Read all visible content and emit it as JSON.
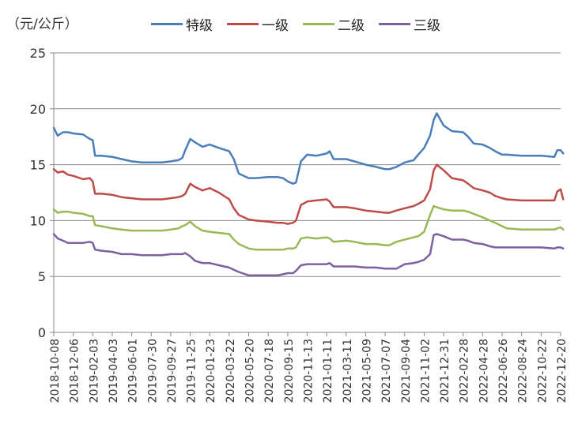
{
  "chart_data": {
    "type": "line",
    "unit_label": "（元/公斤）",
    "ylim": [
      0,
      25
    ],
    "yticks": [
      "0",
      "5",
      "10",
      "15",
      "20",
      "25"
    ],
    "grid": true,
    "legend_position": "top",
    "x_tick_labels": [
      "2018-10-08",
      "2018-12-06",
      "2019-02-03",
      "2019-04-03",
      "2019-06-01",
      "2019-07-30",
      "2019-09-27",
      "2019-11-25",
      "2020-01-23",
      "2020-03-22",
      "2020-05-20",
      "2020-07-18",
      "2020-09-15",
      "2020-11-13",
      "2021-01-11",
      "2021-03-11",
      "2021-05-09",
      "2021-07-07",
      "2021-09-04",
      "2021-11-02",
      "2021-12-31",
      "2022-02-28",
      "2022-04-28",
      "2022-06-26",
      "2022-08-24",
      "2022-10-22",
      "2022-12-20"
    ],
    "x_dates": [
      "2018-10-08",
      "2018-10-20",
      "2018-11-05",
      "2018-11-20",
      "2018-12-06",
      "2019-01-05",
      "2019-01-25",
      "2019-02-03",
      "2019-02-10",
      "2019-03-01",
      "2019-04-03",
      "2019-05-01",
      "2019-06-01",
      "2019-07-01",
      "2019-07-30",
      "2019-09-01",
      "2019-09-27",
      "2019-10-20",
      "2019-11-01",
      "2019-11-10",
      "2019-11-25",
      "2019-12-10",
      "2020-01-01",
      "2020-01-23",
      "2020-02-20",
      "2020-03-22",
      "2020-04-05",
      "2020-04-20",
      "2020-05-20",
      "2020-06-10",
      "2020-07-18",
      "2020-08-15",
      "2020-09-01",
      "2020-09-15",
      "2020-10-01",
      "2020-10-10",
      "2020-10-25",
      "2020-11-13",
      "2020-12-10",
      "2021-01-11",
      "2021-01-20",
      "2021-02-01",
      "2021-03-11",
      "2021-04-05",
      "2021-05-09",
      "2021-06-10",
      "2021-07-07",
      "2021-07-20",
      "2021-08-10",
      "2021-09-04",
      "2021-10-01",
      "2021-10-15",
      "2021-11-02",
      "2021-11-20",
      "2021-12-01",
      "2021-12-10",
      "2021-12-31",
      "2022-01-25",
      "2022-02-28",
      "2022-03-15",
      "2022-04-01",
      "2022-04-28",
      "2022-05-20",
      "2022-06-05",
      "2022-06-26",
      "2022-07-10",
      "2022-08-24",
      "2022-10-22",
      "2022-12-01",
      "2022-12-10",
      "2022-12-20",
      "2022-12-28"
    ],
    "series": [
      {
        "name": "特级",
        "color": "#4A7EBB",
        "values": [
          18.3,
          17.6,
          17.9,
          17.9,
          17.8,
          17.7,
          17.3,
          17.2,
          15.8,
          15.8,
          15.7,
          15.5,
          15.3,
          15.2,
          15.2,
          15.2,
          15.3,
          15.4,
          15.6,
          16.3,
          17.3,
          17.0,
          16.6,
          16.8,
          16.5,
          16.2,
          15.5,
          14.2,
          13.8,
          13.8,
          13.9,
          13.9,
          13.8,
          13.5,
          13.3,
          13.4,
          15.3,
          15.9,
          15.8,
          16.0,
          16.2,
          15.5,
          15.5,
          15.3,
          15.0,
          14.8,
          14.6,
          14.6,
          14.8,
          15.2,
          15.4,
          15.9,
          16.5,
          17.6,
          19.0,
          19.6,
          18.5,
          18.0,
          17.9,
          17.5,
          16.9,
          16.8,
          16.5,
          16.2,
          15.9,
          15.9,
          15.8,
          15.8,
          15.7,
          16.3,
          16.3,
          16.0
        ]
      },
      {
        "name": "一级",
        "color": "#BE4B48",
        "values": [
          14.6,
          14.3,
          14.4,
          14.1,
          14.0,
          13.7,
          13.8,
          13.5,
          12.4,
          12.4,
          12.3,
          12.1,
          12.0,
          11.9,
          11.9,
          11.9,
          12.0,
          12.1,
          12.2,
          12.4,
          13.3,
          13.0,
          12.7,
          12.9,
          12.5,
          11.9,
          11.1,
          10.5,
          10.1,
          10.0,
          9.9,
          9.8,
          9.8,
          9.7,
          9.8,
          10.0,
          11.4,
          11.7,
          11.8,
          11.9,
          11.7,
          11.2,
          11.2,
          11.1,
          10.9,
          10.8,
          10.7,
          10.7,
          10.9,
          11.1,
          11.3,
          11.5,
          11.8,
          12.8,
          14.5,
          15.0,
          14.5,
          13.8,
          13.6,
          13.3,
          12.9,
          12.7,
          12.5,
          12.2,
          12.0,
          11.9,
          11.8,
          11.8,
          11.8,
          12.6,
          12.8,
          11.9
        ]
      },
      {
        "name": "二级",
        "color": "#98B954",
        "values": [
          11.0,
          10.7,
          10.8,
          10.8,
          10.7,
          10.6,
          10.4,
          10.4,
          9.6,
          9.5,
          9.3,
          9.2,
          9.1,
          9.1,
          9.1,
          9.1,
          9.2,
          9.3,
          9.5,
          9.6,
          9.9,
          9.5,
          9.1,
          9.0,
          8.9,
          8.8,
          8.3,
          7.9,
          7.5,
          7.4,
          7.4,
          7.4,
          7.4,
          7.5,
          7.5,
          7.6,
          8.4,
          8.5,
          8.4,
          8.5,
          8.4,
          8.1,
          8.2,
          8.1,
          7.9,
          7.9,
          7.8,
          7.8,
          8.1,
          8.3,
          8.5,
          8.6,
          9.0,
          10.5,
          11.3,
          11.2,
          11.0,
          10.9,
          10.9,
          10.8,
          10.6,
          10.3,
          10.0,
          9.8,
          9.5,
          9.3,
          9.2,
          9.2,
          9.2,
          9.3,
          9.4,
          9.2
        ]
      },
      {
        "name": "三级",
        "color": "#7D60A0",
        "values": [
          8.8,
          8.4,
          8.2,
          8.0,
          8.0,
          8.0,
          8.1,
          8.0,
          7.4,
          7.3,
          7.2,
          7.0,
          7.0,
          6.9,
          6.9,
          6.9,
          7.0,
          7.0,
          7.0,
          7.1,
          6.8,
          6.4,
          6.2,
          6.2,
          6.0,
          5.8,
          5.6,
          5.4,
          5.1,
          5.1,
          5.1,
          5.1,
          5.2,
          5.3,
          5.3,
          5.5,
          6.0,
          6.1,
          6.1,
          6.1,
          6.2,
          5.9,
          5.9,
          5.9,
          5.8,
          5.8,
          5.7,
          5.7,
          5.7,
          6.1,
          6.2,
          6.3,
          6.5,
          7.0,
          8.7,
          8.8,
          8.6,
          8.3,
          8.3,
          8.2,
          8.0,
          7.9,
          7.7,
          7.6,
          7.6,
          7.6,
          7.6,
          7.6,
          7.5,
          7.6,
          7.6,
          7.5
        ]
      }
    ]
  }
}
